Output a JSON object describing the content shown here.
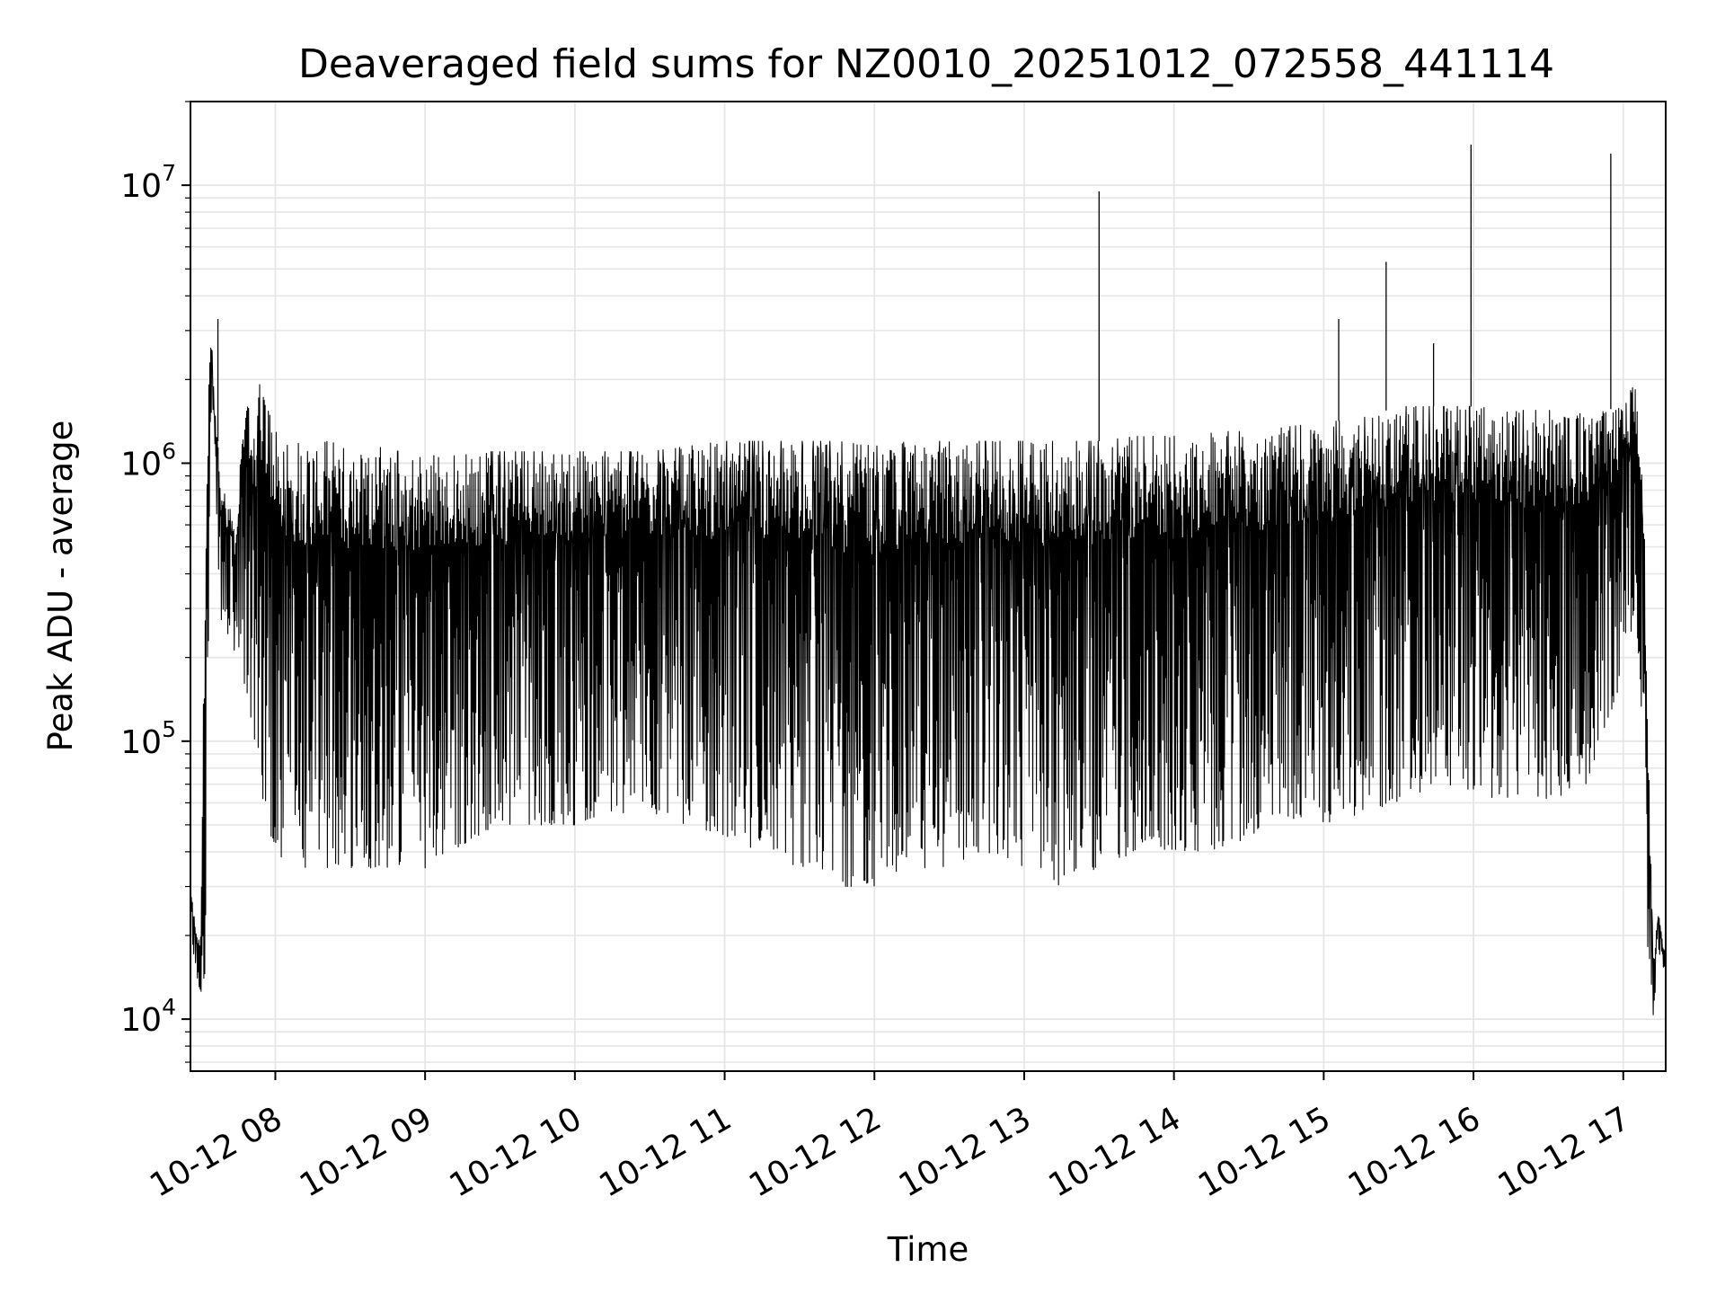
{
  "chart_data": {
    "type": "line",
    "title": "Deaveraged field sums for NZ0010_20251012_072558_441114",
    "xlabel": "Time",
    "ylabel": "Peak ADU - average",
    "yscale": "log",
    "ylim": [
      6500,
      20000000
    ],
    "xlim": [
      "2025-10-12 07:26",
      "2025-10-12 17:17"
    ],
    "grid": true,
    "x_ticks": [
      "10-12 08",
      "10-12 09",
      "10-12 10",
      "10-12 11",
      "10-12 12",
      "10-12 13",
      "10-12 14",
      "10-12 15",
      "10-12 16",
      "10-12 17"
    ],
    "y_ticks": [
      {
        "base": "10",
        "exp": "4",
        "value": 10000
      },
      {
        "base": "10",
        "exp": "5",
        "value": 100000
      },
      {
        "base": "10",
        "exp": "6",
        "value": 1000000
      },
      {
        "base": "10",
        "exp": "7",
        "value": 10000000
      }
    ],
    "series": [
      {
        "color": "#000000",
        "x": [
          "2025-10-12 07:26",
          "2025-10-12 07:28",
          "2025-10-12 07:30",
          "2025-10-12 07:32",
          "2025-10-12 07:34",
          "2025-10-12 07:36",
          "2025-10-12 07:37",
          "2025-10-12 07:38",
          "2025-10-12 07:40",
          "2025-10-12 07:42",
          "2025-10-12 07:44",
          "2025-10-12 07:46",
          "2025-10-12 07:48",
          "2025-10-12 07:50",
          "2025-10-12 07:52",
          "2025-10-12 07:54",
          "2025-10-12 07:56",
          "2025-10-12 07:58",
          "2025-10-12 08:00",
          "2025-10-12 08:05",
          "2025-10-12 08:10",
          "2025-10-12 08:15",
          "2025-10-12 08:20",
          "2025-10-12 08:30",
          "2025-10-12 08:40",
          "2025-10-12 08:50",
          "2025-10-12 09:00",
          "2025-10-12 09:10",
          "2025-10-12 09:20",
          "2025-10-12 09:30",
          "2025-10-12 09:40",
          "2025-10-12 09:50",
          "2025-10-12 10:00",
          "2025-10-12 10:15",
          "2025-10-12 10:30",
          "2025-10-12 10:45",
          "2025-10-12 11:00",
          "2025-10-12 11:15",
          "2025-10-12 11:30",
          "2025-10-12 11:45",
          "2025-10-12 12:00",
          "2025-10-12 12:15",
          "2025-10-12 12:30",
          "2025-10-12 12:45",
          "2025-10-12 13:00",
          "2025-10-12 13:15",
          "2025-10-12 13:30",
          "2025-10-12 13:45",
          "2025-10-12 14:00",
          "2025-10-12 14:15",
          "2025-10-12 14:30",
          "2025-10-12 14:45",
          "2025-10-12 15:00",
          "2025-10-12 15:15",
          "2025-10-12 15:30",
          "2025-10-12 15:45",
          "2025-10-12 16:00",
          "2025-10-12 16:15",
          "2025-10-12 16:30",
          "2025-10-12 16:45",
          "2025-10-12 17:00",
          "2025-10-12 17:05",
          "2025-10-12 17:08",
          "2025-10-12 17:10",
          "2025-10-12 17:12",
          "2025-10-12 17:14",
          "2025-10-12 17:16"
        ],
        "upper": [
          30000,
          22000,
          18000,
          600000,
          3300000,
          1500000,
          1200000,
          900000,
          800000,
          700000,
          600000,
          1000000,
          1600000,
          1800000,
          1500000,
          2000000,
          1600000,
          1500000,
          1400000,
          1300000,
          1250000,
          1200000,
          1200000,
          1150000,
          1150000,
          1100000,
          1100000,
          1100000,
          1100000,
          1100000,
          1100000,
          1100000,
          1100000,
          1100000,
          1100000,
          1150000,
          1200000,
          1200000,
          1200000,
          1200000,
          1150000,
          1200000,
          1200000,
          1200000,
          1200000,
          1200000,
          1200000,
          1250000,
          1250000,
          1300000,
          1300000,
          1350000,
          1400000,
          1450000,
          1600000,
          1600000,
          1600000,
          1550000,
          1550000,
          1500000,
          1600000,
          2000000,
          1000000,
          100000,
          16000,
          25000,
          18000
        ],
        "lower": [
          20000,
          15000,
          12000,
          15000,
          900000,
          700000,
          500000,
          250000,
          250000,
          220000,
          200000,
          180000,
          150000,
          120000,
          90000,
          70000,
          55000,
          45000,
          40000,
          35000,
          35000,
          35000,
          35000,
          35000,
          35000,
          35000,
          35000,
          40000,
          45000,
          50000,
          50000,
          50000,
          50000,
          55000,
          55000,
          50000,
          45000,
          40000,
          35000,
          30000,
          30000,
          35000,
          35000,
          40000,
          35000,
          30000,
          35000,
          40000,
          40000,
          40000,
          45000,
          50000,
          50000,
          55000,
          60000,
          70000,
          65000,
          60000,
          60000,
          70000,
          170000,
          300000,
          100000,
          12000,
          10000,
          18000,
          15000
        ]
      }
    ],
    "spikes": [
      {
        "x": "2025-10-12 13:30",
        "y": 9500000
      },
      {
        "x": "2025-10-12 15:06",
        "y": 3300000
      },
      {
        "x": "2025-10-12 15:25",
        "y": 5300000
      },
      {
        "x": "2025-10-12 15:44",
        "y": 2700000
      },
      {
        "x": "2025-10-12 15:59",
        "y": 14000000
      },
      {
        "x": "2025-10-12 16:55",
        "y": 13000000
      },
      {
        "x": "2025-10-12 07:37",
        "y": 3300000
      }
    ]
  }
}
